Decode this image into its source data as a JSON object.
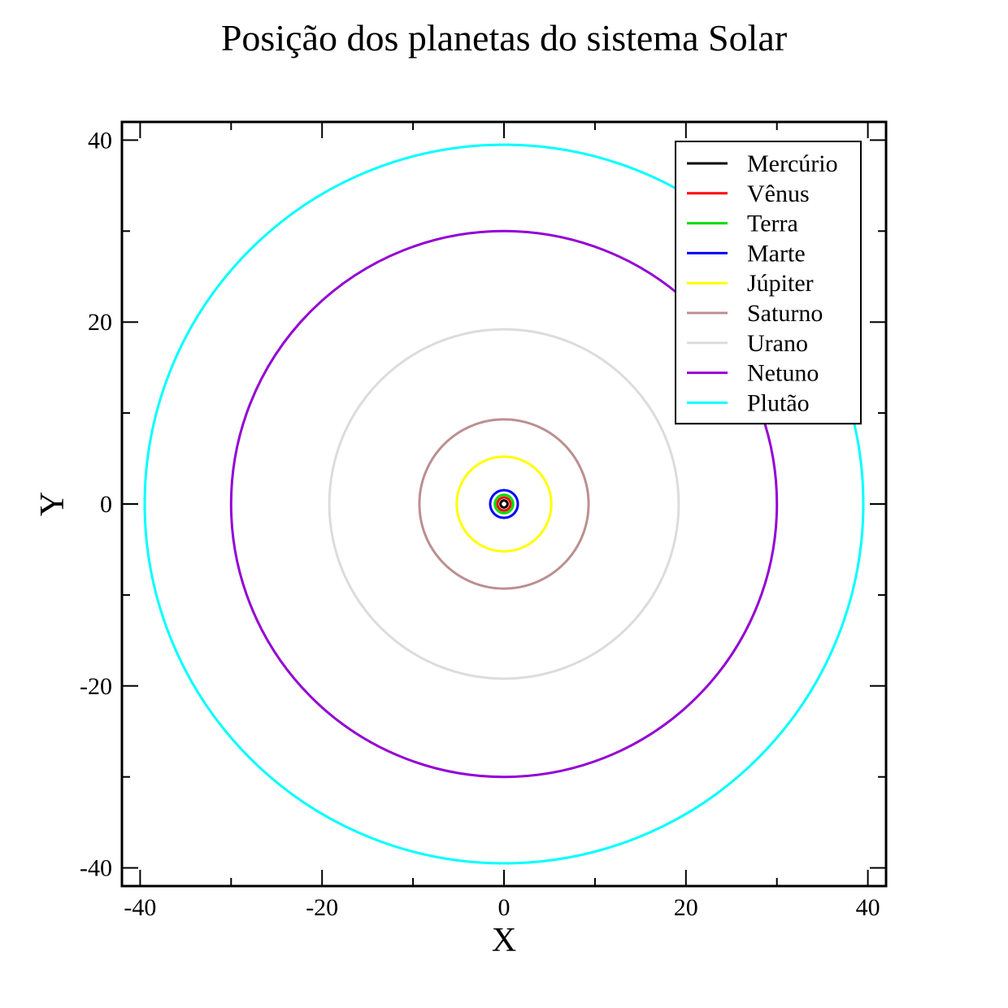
{
  "chart_data": {
    "type": "line",
    "title": "Posição dos planetas do sistema Solar",
    "xlabel": "X",
    "ylabel": "Y",
    "xlim": [
      -42,
      42
    ],
    "ylim": [
      -42,
      42
    ],
    "xticks": [
      -40,
      -20,
      0,
      20,
      40
    ],
    "yticks": [
      -40,
      -20,
      0,
      20,
      40
    ],
    "minor_tick_step": 10,
    "grid": false,
    "legend_position": "top-right",
    "series": [
      {
        "name": "Mercúrio",
        "color": "#000000",
        "radius": 0.39
      },
      {
        "name": "Vênus",
        "color": "#ff0000",
        "radius": 0.72
      },
      {
        "name": "Terra",
        "color": "#00dd00",
        "radius": 1.0
      },
      {
        "name": "Marte",
        "color": "#0000ff",
        "radius": 1.52
      },
      {
        "name": "Júpiter",
        "color": "#ffff00",
        "radius": 5.2
      },
      {
        "name": "Saturno",
        "color": "#bc8f8f",
        "radius": 9.3
      },
      {
        "name": "Urano",
        "color": "#dcdcdc",
        "radius": 19.2
      },
      {
        "name": "Netuno",
        "color": "#9400d3",
        "radius": 30.0
      },
      {
        "name": "Plutão",
        "color": "#00ffff",
        "radius": 39.5
      }
    ]
  }
}
